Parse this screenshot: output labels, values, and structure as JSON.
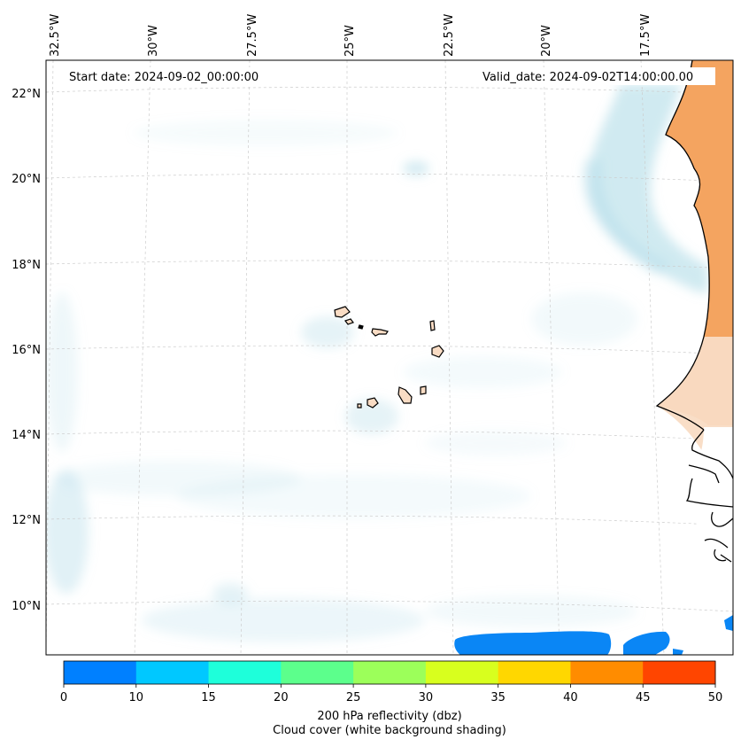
{
  "map": {
    "start_date_text": "Start date: 2024-09-02_00:00:00",
    "valid_date_text": "Valid_date: 2024-09-02T14:00:00.00",
    "longitude_labels": [
      "32.5°W",
      "30°W",
      "27.5°W",
      "25°W",
      "22.5°W",
      "20°W",
      "17.5°W"
    ],
    "latitude_labels": [
      "22°N",
      "20°N",
      "18°N",
      "16°N",
      "14°N",
      "12°N",
      "10°N"
    ],
    "colors": {
      "cloud_blue": "#a9d8e6",
      "land_orange": "#f4a460",
      "land_peach": "#f9dcc4",
      "coast": "#000000",
      "grid": "#cccccc"
    }
  },
  "colorbar": {
    "ticks": [
      "0",
      "10",
      "15",
      "20",
      "25",
      "30",
      "35",
      "40",
      "45",
      "50"
    ],
    "colors": [
      "#0080ff",
      "#00c8ff",
      "#1effda",
      "#5cff8c",
      "#9cff5a",
      "#d8ff1e",
      "#ffd700",
      "#ff8c00",
      "#ff4500"
    ],
    "label_line1": "200 hPa reflectivity (dbz)",
    "label_line2": "Cloud cover (white background shading)"
  }
}
